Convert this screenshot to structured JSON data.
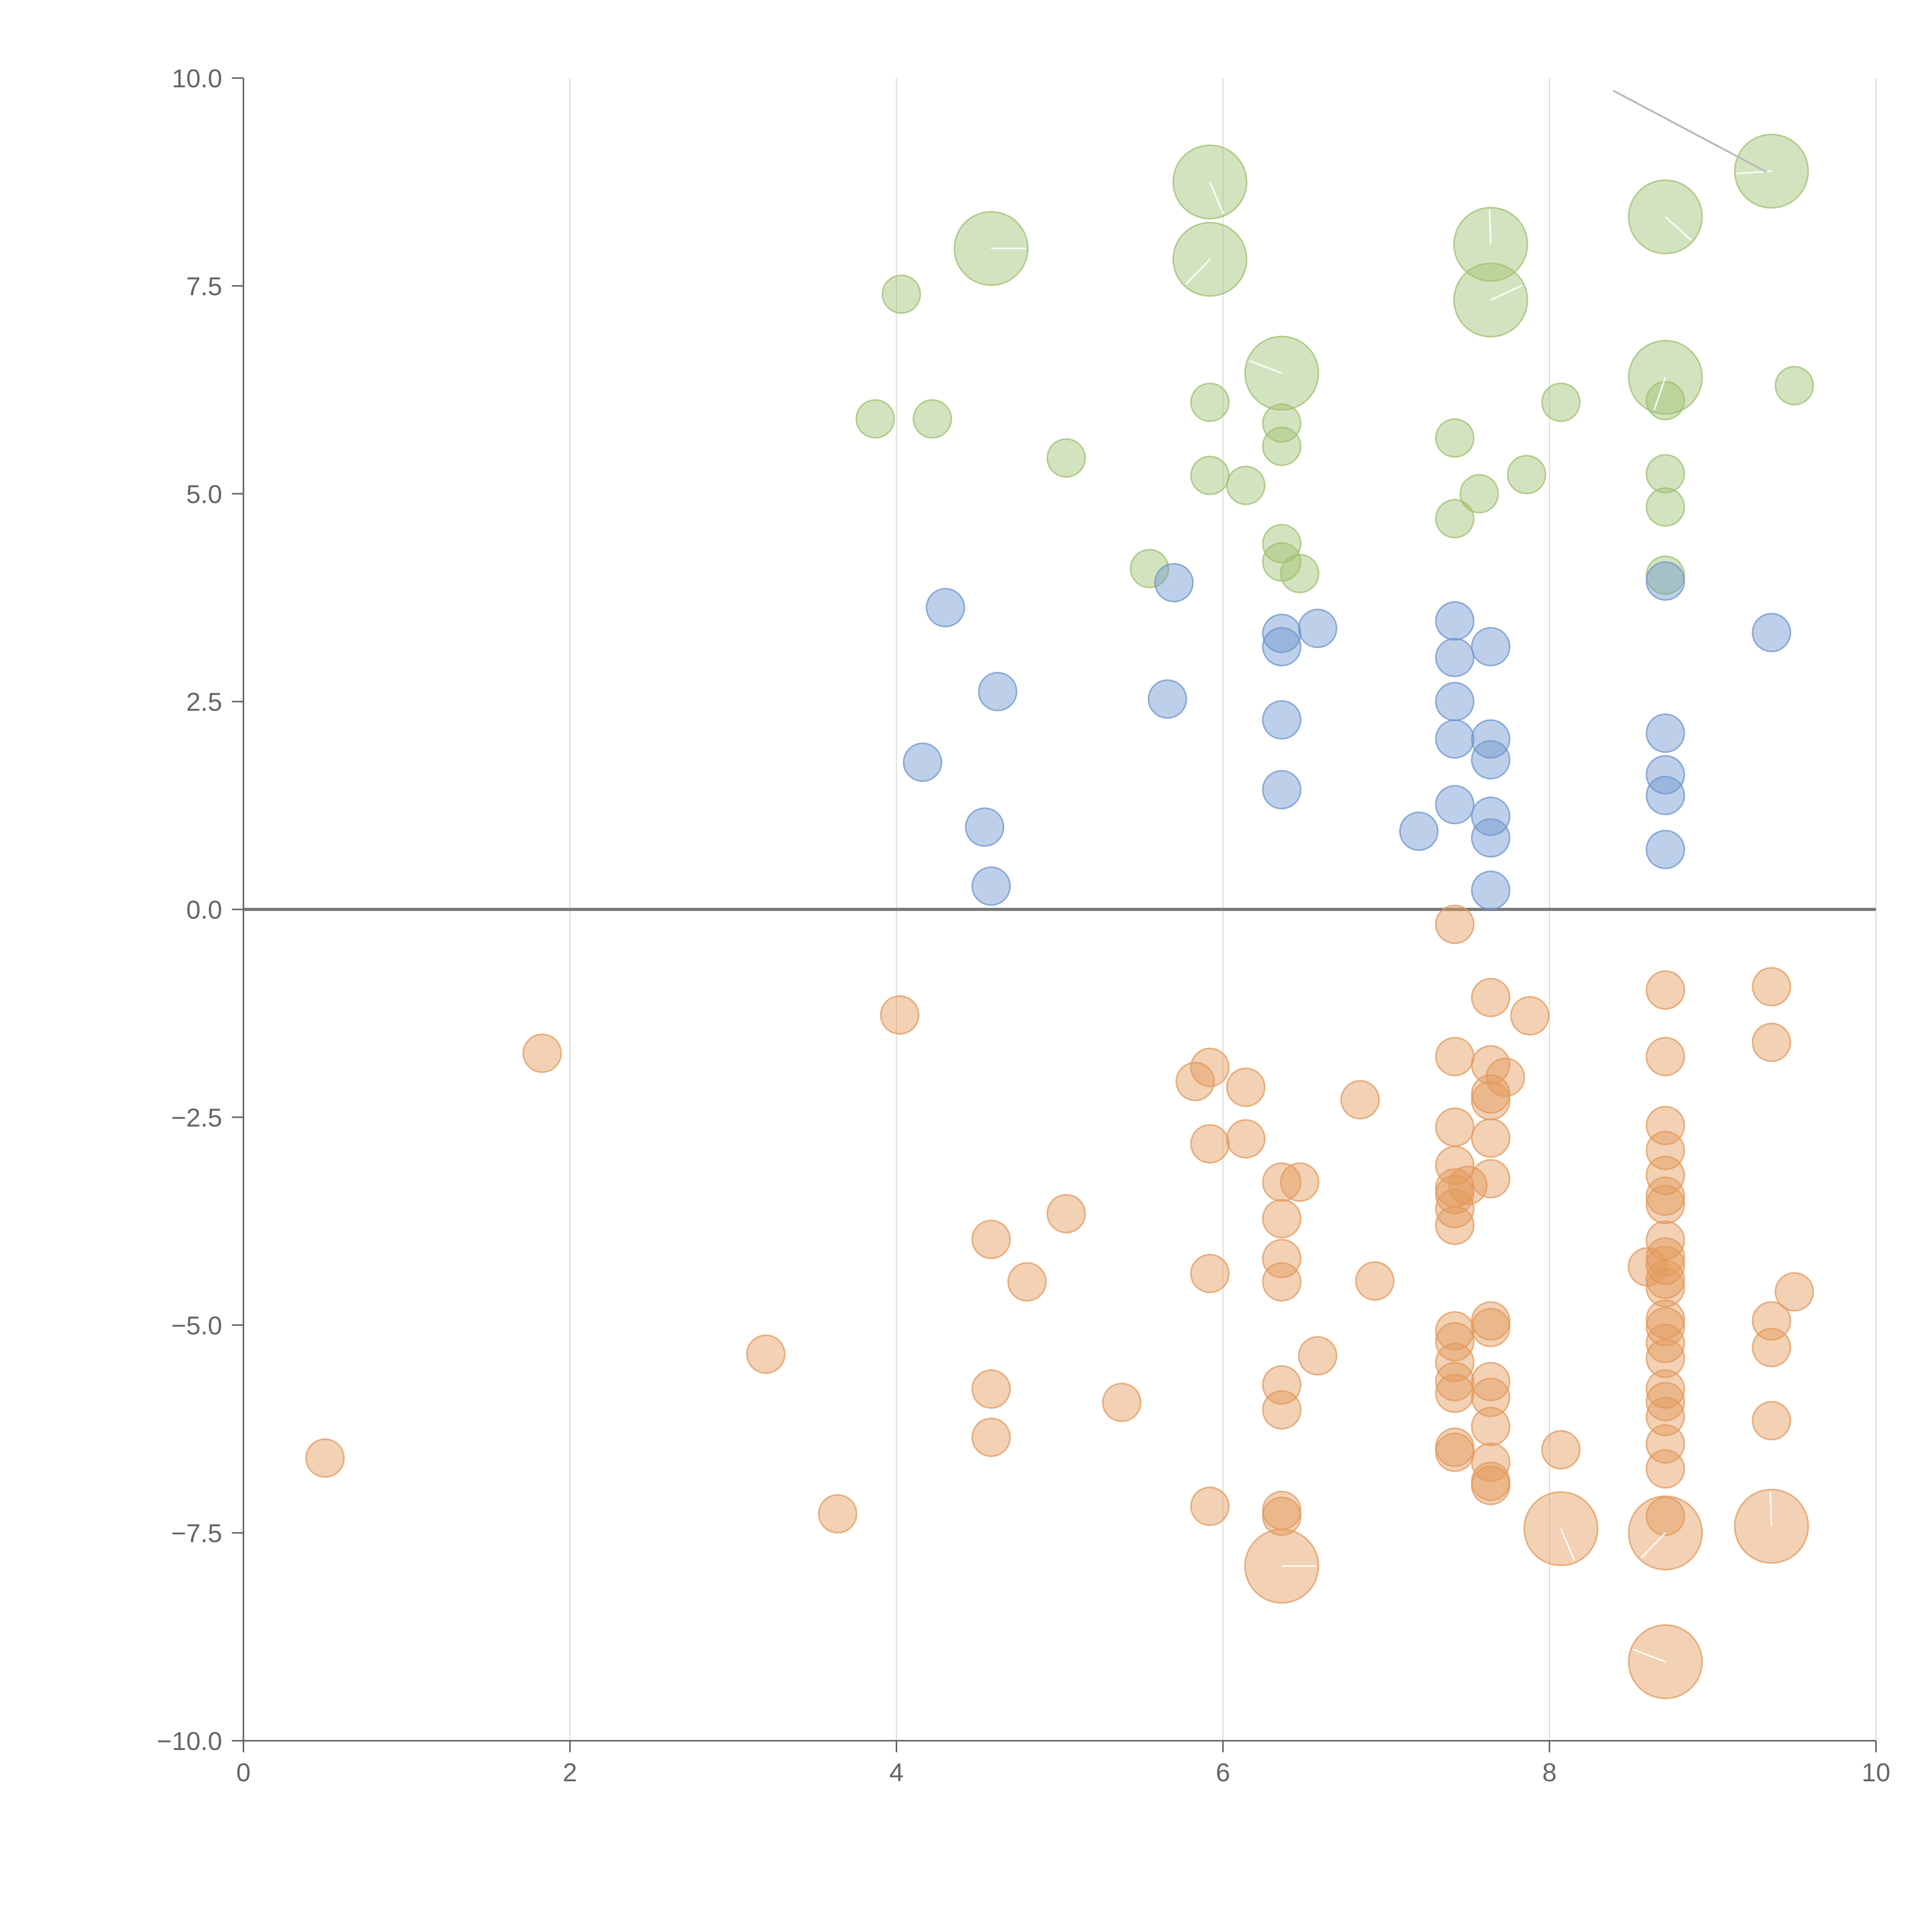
{
  "chart_data": {
    "type": "scatter",
    "title": "",
    "xlabel": "",
    "ylabel": "",
    "xlim": [
      0,
      10
    ],
    "ylim": [
      -10,
      10
    ],
    "x_ticks": [
      "0",
      "2",
      "4",
      "6",
      "8",
      "10"
    ],
    "y_ticks": [
      "10.0",
      "7.5",
      "5.0",
      "2.5",
      "0.0",
      "−2.5",
      "−5.0",
      "−7.5",
      "−10.0"
    ],
    "grid": "vertical",
    "colors": {
      "green": "#9fc070",
      "blue": "#6f96cf",
      "orange": "#e39a5c"
    },
    "series": [
      {
        "color": "green",
        "points": [
          {
            "x": 4.03,
            "y": 7.4,
            "size": "small"
          },
          {
            "x": 4.58,
            "y": 7.95,
            "size": "large"
          },
          {
            "x": 3.87,
            "y": 5.9,
            "size": "small"
          },
          {
            "x": 4.22,
            "y": 5.9,
            "size": "small"
          },
          {
            "x": 5.04,
            "y": 5.43,
            "size": "small"
          },
          {
            "x": 5.55,
            "y": 4.1,
            "size": "small"
          },
          {
            "x": 5.92,
            "y": 8.75,
            "size": "large"
          },
          {
            "x": 5.92,
            "y": 7.82,
            "size": "large"
          },
          {
            "x": 5.92,
            "y": 6.1,
            "size": "small"
          },
          {
            "x": 5.92,
            "y": 5.22,
            "size": "small"
          },
          {
            "x": 6.14,
            "y": 5.1,
            "size": "small"
          },
          {
            "x": 6.36,
            "y": 6.45,
            "size": "large"
          },
          {
            "x": 6.36,
            "y": 5.85,
            "size": "small"
          },
          {
            "x": 6.36,
            "y": 5.57,
            "size": "small"
          },
          {
            "x": 6.36,
            "y": 4.4,
            "size": "small"
          },
          {
            "x": 6.36,
            "y": 4.18,
            "size": "small"
          },
          {
            "x": 6.47,
            "y": 4.04,
            "size": "small"
          },
          {
            "x": 7.42,
            "y": 5.67,
            "size": "small"
          },
          {
            "x": 7.42,
            "y": 4.7,
            "size": "small"
          },
          {
            "x": 7.57,
            "y": 5.0,
            "size": "small"
          },
          {
            "x": 7.64,
            "y": 8.0,
            "size": "large"
          },
          {
            "x": 7.64,
            "y": 7.33,
            "size": "large"
          },
          {
            "x": 7.86,
            "y": 5.23,
            "size": "small"
          },
          {
            "x": 8.07,
            "y": 6.1,
            "size": "small"
          },
          {
            "x": 8.71,
            "y": 8.33,
            "size": "large"
          },
          {
            "x": 8.71,
            "y": 6.4,
            "size": "large"
          },
          {
            "x": 8.71,
            "y": 6.12,
            "size": "small"
          },
          {
            "x": 8.71,
            "y": 5.24,
            "size": "small"
          },
          {
            "x": 8.71,
            "y": 4.84,
            "size": "small"
          },
          {
            "x": 8.71,
            "y": 4.02,
            "size": "small"
          },
          {
            "x": 9.36,
            "y": 8.88,
            "size": "large"
          },
          {
            "x": 9.5,
            "y": 6.3,
            "size": "small"
          }
        ]
      },
      {
        "color": "blue",
        "points": [
          {
            "x": 4.3,
            "y": 3.63
          },
          {
            "x": 4.16,
            "y": 1.77
          },
          {
            "x": 4.54,
            "y": 0.99
          },
          {
            "x": 4.58,
            "y": 0.28
          },
          {
            "x": 4.62,
            "y": 2.62
          },
          {
            "x": 5.66,
            "y": 2.53
          },
          {
            "x": 5.7,
            "y": 3.93
          },
          {
            "x": 6.36,
            "y": 3.32
          },
          {
            "x": 6.36,
            "y": 3.16
          },
          {
            "x": 6.36,
            "y": 2.28
          },
          {
            "x": 6.36,
            "y": 1.44
          },
          {
            "x": 6.58,
            "y": 3.38
          },
          {
            "x": 7.2,
            "y": 0.94
          },
          {
            "x": 7.42,
            "y": 3.47
          },
          {
            "x": 7.42,
            "y": 3.03
          },
          {
            "x": 7.42,
            "y": 2.5
          },
          {
            "x": 7.42,
            "y": 2.05
          },
          {
            "x": 7.42,
            "y": 1.26
          },
          {
            "x": 7.64,
            "y": 3.16
          },
          {
            "x": 7.64,
            "y": 2.05
          },
          {
            "x": 7.64,
            "y": 1.8
          },
          {
            "x": 7.64,
            "y": 1.12
          },
          {
            "x": 7.64,
            "y": 0.86
          },
          {
            "x": 7.64,
            "y": 0.23
          },
          {
            "x": 8.71,
            "y": 3.95
          },
          {
            "x": 8.71,
            "y": 2.12
          },
          {
            "x": 8.71,
            "y": 1.62
          },
          {
            "x": 8.71,
            "y": 1.37
          },
          {
            "x": 8.71,
            "y": 0.72
          },
          {
            "x": 9.36,
            "y": 3.33
          }
        ]
      },
      {
        "color": "orange",
        "points": [
          {
            "x": 0.5,
            "y": -6.6,
            "size": "small"
          },
          {
            "x": 1.83,
            "y": -1.73,
            "size": "small"
          },
          {
            "x": 3.2,
            "y": -5.35,
            "size": "small"
          },
          {
            "x": 3.64,
            "y": -7.27,
            "size": "small"
          },
          {
            "x": 4.02,
            "y": -1.27,
            "size": "small"
          },
          {
            "x": 4.58,
            "y": -3.97,
            "size": "small"
          },
          {
            "x": 4.58,
            "y": -5.77,
            "size": "small"
          },
          {
            "x": 4.58,
            "y": -6.35,
            "size": "small"
          },
          {
            "x": 4.8,
            "y": -4.48,
            "size": "small"
          },
          {
            "x": 5.04,
            "y": -3.66,
            "size": "small"
          },
          {
            "x": 5.38,
            "y": -5.93,
            "size": "small"
          },
          {
            "x": 5.83,
            "y": -2.07,
            "size": "small"
          },
          {
            "x": 5.92,
            "y": -1.9,
            "size": "small"
          },
          {
            "x": 5.92,
            "y": -2.82,
            "size": "small"
          },
          {
            "x": 5.92,
            "y": -4.38,
            "size": "small"
          },
          {
            "x": 5.92,
            "y": -7.18,
            "size": "small"
          },
          {
            "x": 6.14,
            "y": -2.14,
            "size": "small"
          },
          {
            "x": 6.14,
            "y": -2.76,
            "size": "small"
          },
          {
            "x": 6.36,
            "y": -3.28,
            "size": "small"
          },
          {
            "x": 6.36,
            "y": -3.72,
            "size": "small"
          },
          {
            "x": 6.36,
            "y": -4.2,
            "size": "small"
          },
          {
            "x": 6.36,
            "y": -4.48,
            "size": "small"
          },
          {
            "x": 6.36,
            "y": -5.72,
            "size": "small"
          },
          {
            "x": 6.36,
            "y": -6.02,
            "size": "small"
          },
          {
            "x": 6.36,
            "y": -7.23,
            "size": "small"
          },
          {
            "x": 6.36,
            "y": -7.3,
            "size": "small"
          },
          {
            "x": 6.36,
            "y": -7.9,
            "size": "large"
          },
          {
            "x": 6.47,
            "y": -3.28,
            "size": "small"
          },
          {
            "x": 6.58,
            "y": -5.37,
            "size": "small"
          },
          {
            "x": 6.84,
            "y": -2.29,
            "size": "small"
          },
          {
            "x": 6.93,
            "y": -4.47,
            "size": "small"
          },
          {
            "x": 7.42,
            "y": -0.18,
            "size": "small"
          },
          {
            "x": 7.42,
            "y": -1.77,
            "size": "small"
          },
          {
            "x": 7.42,
            "y": -2.62,
            "size": "small"
          },
          {
            "x": 7.42,
            "y": -3.08,
            "size": "small"
          },
          {
            "x": 7.42,
            "y": -3.35,
            "size": "small"
          },
          {
            "x": 7.42,
            "y": -3.43,
            "size": "small"
          },
          {
            "x": 7.42,
            "y": -3.6,
            "size": "small"
          },
          {
            "x": 7.42,
            "y": -3.8,
            "size": "small"
          },
          {
            "x": 7.5,
            "y": -3.32,
            "size": "small"
          },
          {
            "x": 7.42,
            "y": -5.07,
            "size": "small"
          },
          {
            "x": 7.42,
            "y": -5.2,
            "size": "small"
          },
          {
            "x": 7.42,
            "y": -5.45,
            "size": "small"
          },
          {
            "x": 7.42,
            "y": -5.68,
            "size": "small"
          },
          {
            "x": 7.42,
            "y": -5.82,
            "size": "small"
          },
          {
            "x": 7.42,
            "y": -6.47,
            "size": "small"
          },
          {
            "x": 7.42,
            "y": -6.53,
            "size": "small"
          },
          {
            "x": 7.64,
            "y": -1.06,
            "size": "small"
          },
          {
            "x": 7.64,
            "y": -1.87,
            "size": "small"
          },
          {
            "x": 7.64,
            "y": -2.22,
            "size": "small"
          },
          {
            "x": 7.64,
            "y": -2.3,
            "size": "small"
          },
          {
            "x": 7.64,
            "y": -2.75,
            "size": "small"
          },
          {
            "x": 7.64,
            "y": -3.24,
            "size": "small"
          },
          {
            "x": 7.64,
            "y": -4.95,
            "size": "small"
          },
          {
            "x": 7.64,
            "y": -5.03,
            "size": "small"
          },
          {
            "x": 7.64,
            "y": -5.68,
            "size": "small"
          },
          {
            "x": 7.64,
            "y": -5.87,
            "size": "small"
          },
          {
            "x": 7.64,
            "y": -6.22,
            "size": "small"
          },
          {
            "x": 7.64,
            "y": -6.65,
            "size": "small"
          },
          {
            "x": 7.64,
            "y": -6.88,
            "size": "small"
          },
          {
            "x": 7.64,
            "y": -6.93,
            "size": "small"
          },
          {
            "x": 7.73,
            "y": -2.02,
            "size": "small"
          },
          {
            "x": 7.88,
            "y": -1.28,
            "size": "small"
          },
          {
            "x": 8.07,
            "y": -6.5,
            "size": "small"
          },
          {
            "x": 8.07,
            "y": -7.45,
            "size": "large"
          },
          {
            "x": 8.71,
            "y": -0.97,
            "size": "small"
          },
          {
            "x": 8.71,
            "y": -1.77,
            "size": "small"
          },
          {
            "x": 8.71,
            "y": -2.6,
            "size": "small"
          },
          {
            "x": 8.71,
            "y": -2.9,
            "size": "small"
          },
          {
            "x": 8.71,
            "y": -3.2,
            "size": "small"
          },
          {
            "x": 8.71,
            "y": -3.45,
            "size": "small"
          },
          {
            "x": 8.71,
            "y": -3.55,
            "size": "small"
          },
          {
            "x": 8.71,
            "y": -3.98,
            "size": "small"
          },
          {
            "x": 8.71,
            "y": -4.18,
            "size": "small"
          },
          {
            "x": 8.71,
            "y": -4.28,
            "size": "small"
          },
          {
            "x": 8.71,
            "y": -4.45,
            "size": "small"
          },
          {
            "x": 8.71,
            "y": -4.55,
            "size": "small"
          },
          {
            "x": 8.71,
            "y": -4.93,
            "size": "small"
          },
          {
            "x": 8.71,
            "y": -5.02,
            "size": "small"
          },
          {
            "x": 8.71,
            "y": -5.22,
            "size": "small"
          },
          {
            "x": 8.71,
            "y": -5.4,
            "size": "small"
          },
          {
            "x": 8.71,
            "y": -5.77,
            "size": "small"
          },
          {
            "x": 8.71,
            "y": -5.92,
            "size": "small"
          },
          {
            "x": 8.71,
            "y": -6.1,
            "size": "small"
          },
          {
            "x": 8.71,
            "y": -6.43,
            "size": "small"
          },
          {
            "x": 8.71,
            "y": -6.73,
            "size": "small"
          },
          {
            "x": 8.71,
            "y": -7.3,
            "size": "small"
          },
          {
            "x": 8.71,
            "y": -7.5,
            "size": "large"
          },
          {
            "x": 8.71,
            "y": -9.05,
            "size": "large"
          },
          {
            "x": 8.6,
            "y": -4.3,
            "size": "small"
          },
          {
            "x": 9.36,
            "y": -0.93,
            "size": "small"
          },
          {
            "x": 9.36,
            "y": -1.6,
            "size": "small"
          },
          {
            "x": 9.36,
            "y": -4.95,
            "size": "small"
          },
          {
            "x": 9.36,
            "y": -5.27,
            "size": "small"
          },
          {
            "x": 9.36,
            "y": -6.15,
            "size": "small"
          },
          {
            "x": 9.36,
            "y": -7.42,
            "size": "large"
          },
          {
            "x": 9.5,
            "y": -4.6,
            "size": "small"
          }
        ]
      }
    ]
  }
}
